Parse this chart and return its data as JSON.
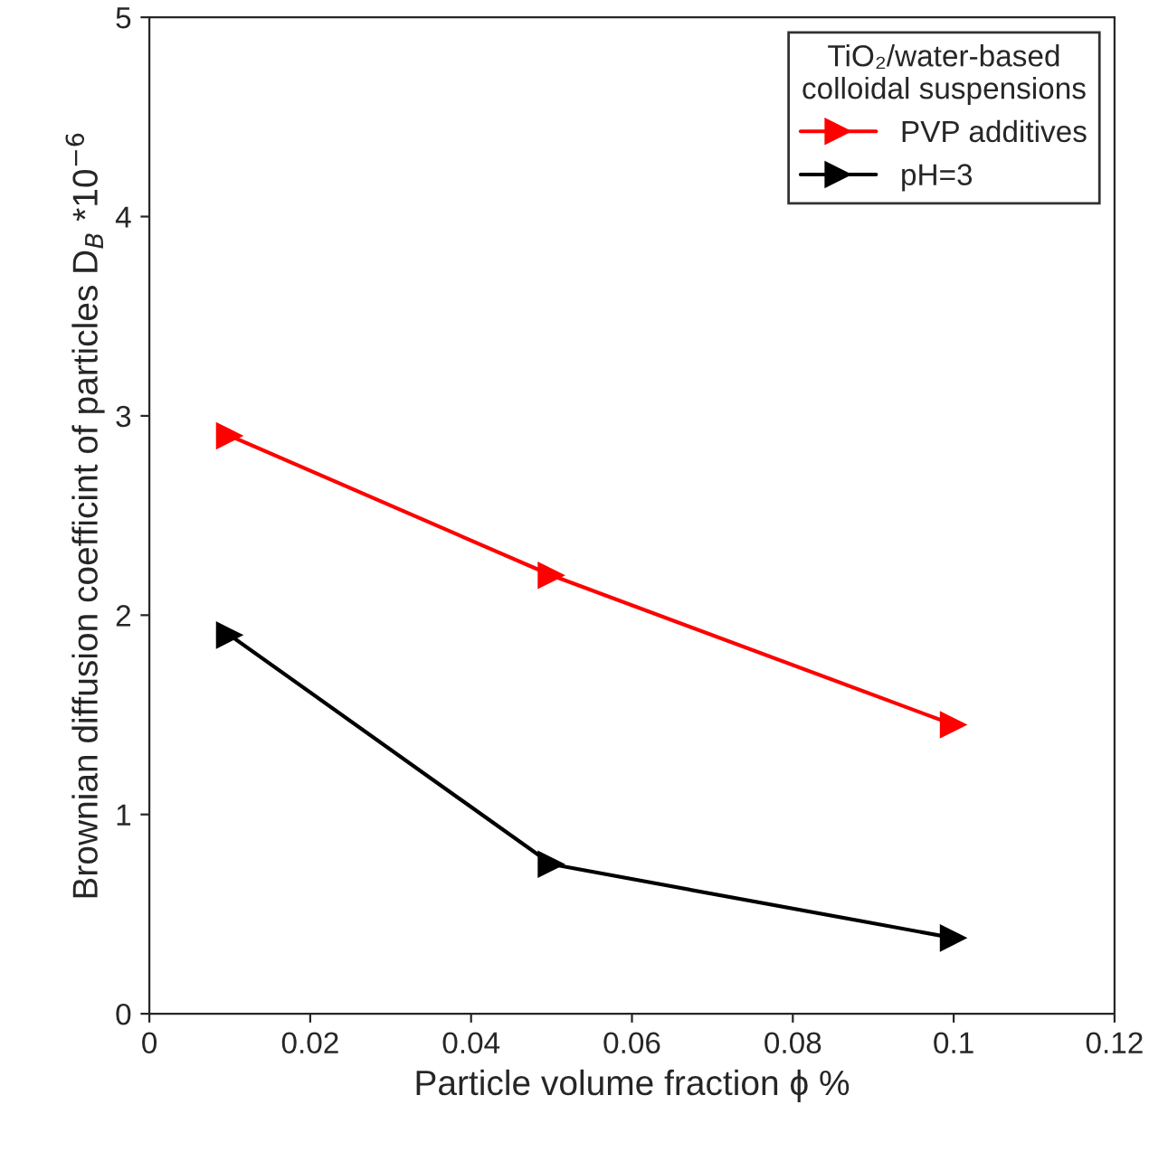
{
  "chart_data": {
    "type": "line",
    "xlabel": "Particle volume fraction ϕ %",
    "ylabel": "Brownian diffusion coefficint of particles D$_{B}$ *10$^{−6}$",
    "legend_title": "TiO₂/water-based\ncolloidal suspensions",
    "x": [
      0.01,
      0.05,
      0.1
    ],
    "series": [
      {
        "name": "PVP additives",
        "color": "#ff0000",
        "values": [
          2.9,
          2.2,
          1.45
        ]
      },
      {
        "name": "pH=3",
        "color": "#000000",
        "values": [
          1.9,
          0.75,
          0.38
        ]
      }
    ],
    "xlim": [
      0,
      0.12
    ],
    "xticks": [
      {
        "value": 0,
        "label": "0"
      },
      0.02,
      0.04,
      0.06,
      0.08,
      0.1,
      0.12
    ],
    "ylim": [
      0,
      5
    ],
    "yticks": [
      0,
      1,
      2,
      3,
      4,
      5
    ],
    "grid": false,
    "legend": "top right",
    "marker": "triangle",
    "line_style": "solid"
  }
}
